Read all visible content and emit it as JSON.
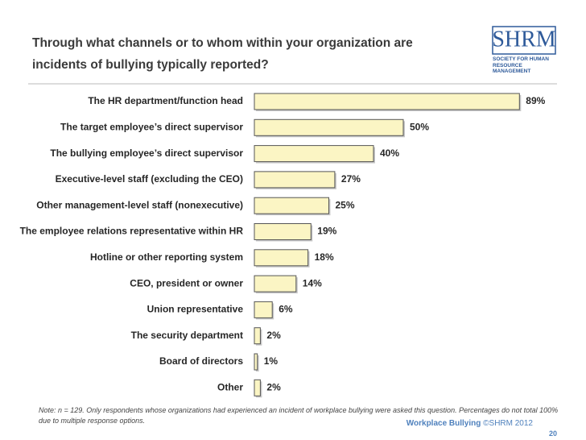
{
  "header": {
    "title": "Through what channels or to whom within your organization are incidents of bullying typically reported?",
    "logo": "SHRM",
    "logo_subtitle": "SOCIETY FOR HUMAN RESOURCE MANAGEMENT"
  },
  "chart_data": {
    "type": "bar",
    "orientation": "horizontal",
    "categories": [
      "The HR department/function head",
      "The target employee’s direct supervisor",
      "The bullying employee’s direct supervisor",
      "Executive-level staff (excluding the CEO)",
      "Other management-level staff (nonexecutive)",
      "The employee relations representative within HR",
      "Hotline or other reporting system",
      "CEO, president or owner",
      "Union representative",
      "The security department",
      "Board of directors",
      "Other"
    ],
    "values": [
      89,
      50,
      40,
      27,
      25,
      19,
      18,
      14,
      6,
      2,
      1,
      2
    ],
    "value_labels": [
      "89%",
      "50%",
      "40%",
      "27%",
      "25%",
      "19%",
      "18%",
      "14%",
      "6%",
      "2%",
      "1%",
      "2%"
    ],
    "color": "#fbf5c4"
  },
  "footer": {
    "note": "Note: n = 129. Only respondents whose organizations had experienced an incident of workplace bullying were asked this question. Percentages do not total 100% due to multiple response options.",
    "source_title": "Workplace Bullying",
    "source_copyright": "©SHRM 2012",
    "page": "20"
  }
}
